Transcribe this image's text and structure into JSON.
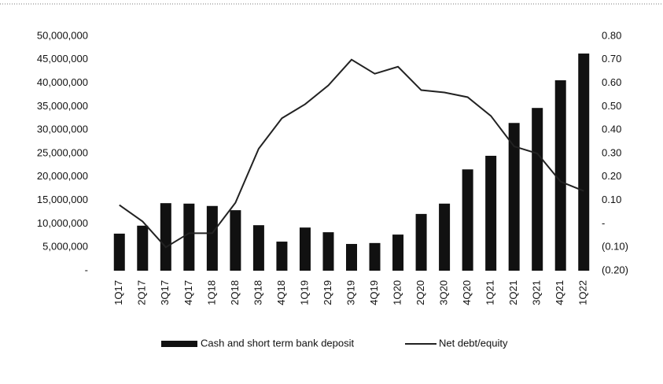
{
  "chart_data": {
    "type": "bar",
    "categories": [
      "1Q17",
      "2Q17",
      "3Q17",
      "4Q17",
      "1Q18",
      "2Q18",
      "3Q18",
      "4Q18",
      "1Q19",
      "2Q19",
      "3Q19",
      "4Q19",
      "1Q20",
      "2Q20",
      "3Q20",
      "4Q20",
      "1Q21",
      "2Q21",
      "3Q21",
      "4Q21",
      "1Q22"
    ],
    "series": [
      {
        "name": "Cash and short term bank deposit",
        "type": "bar",
        "color": "#111111",
        "values": [
          7900000,
          9600000,
          14400000,
          14300000,
          13800000,
          12900000,
          9700000,
          6200000,
          9200000,
          8200000,
          5700000,
          5900000,
          7700000,
          12100000,
          14300000,
          21600000,
          24500000,
          31500000,
          34700000,
          40600000,
          46300000
        ]
      },
      {
        "name": "Net debt/equity",
        "type": "line",
        "axis": "y2",
        "color": "#222222",
        "values": [
          0.08,
          0.01,
          -0.1,
          -0.04,
          -0.04,
          0.09,
          0.32,
          0.45,
          0.51,
          0.59,
          0.7,
          0.64,
          0.67,
          0.57,
          0.56,
          0.54,
          0.46,
          0.33,
          0.3,
          0.18,
          0.14
        ]
      }
    ],
    "ylim": [
      0,
      50000000
    ],
    "yticks": [
      {
        "value": 0,
        "label": "-"
      },
      {
        "value": 5000000,
        "label": "5,000,000"
      },
      {
        "value": 10000000,
        "label": "10,000,000"
      },
      {
        "value": 15000000,
        "label": "15,000,000"
      },
      {
        "value": 20000000,
        "label": "20,000,000"
      },
      {
        "value": 25000000,
        "label": "25,000,000"
      },
      {
        "value": 30000000,
        "label": "30,000,000"
      },
      {
        "value": 35000000,
        "label": "35,000,000"
      },
      {
        "value": 40000000,
        "label": "40,000,000"
      },
      {
        "value": 45000000,
        "label": "45,000,000"
      },
      {
        "value": 50000000,
        "label": "50,000,000"
      }
    ],
    "y2lim": [
      -0.2,
      0.8
    ],
    "y2ticks": [
      {
        "value": -0.2,
        "label": "(0.20)"
      },
      {
        "value": -0.1,
        "label": "(0.10)"
      },
      {
        "value": 0,
        "label": "-"
      },
      {
        "value": 0.1,
        "label": "0.10"
      },
      {
        "value": 0.2,
        "label": "0.20"
      },
      {
        "value": 0.3,
        "label": "0.30"
      },
      {
        "value": 0.4,
        "label": "0.40"
      },
      {
        "value": 0.5,
        "label": "0.50"
      },
      {
        "value": 0.6,
        "label": "0.60"
      },
      {
        "value": 0.7,
        "label": "0.70"
      },
      {
        "value": 0.8,
        "label": "0.80"
      }
    ],
    "grid": false,
    "legend": "bottom"
  }
}
